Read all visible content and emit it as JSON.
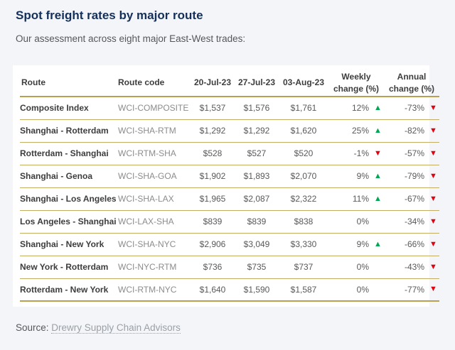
{
  "page": {
    "title": "Spot freight rates by major route",
    "subtitle": "Our assessment across eight major East-West trades:",
    "source_label": "Source:",
    "source_link": "Drewry Supply Chain Advisors"
  },
  "table": {
    "columns": [
      "Route",
      "Route code",
      "20-Jul-23",
      "27-Jul-23",
      "03-Aug-23",
      "Weekly change (%)",
      "Annual change (%)"
    ],
    "rows": [
      {
        "route": "Composite Index",
        "code": "WCI-COMPOSITE",
        "d1": "$1,537",
        "d2": "$1,576",
        "d3": "$1,761",
        "weekly": "12%",
        "weekly_dir": "up",
        "annual": "-73%",
        "annual_dir": "down"
      },
      {
        "route": "Shanghai - Rotterdam",
        "code": "WCI-SHA-RTM",
        "d1": "$1,292",
        "d2": "$1,292",
        "d3": "$1,620",
        "weekly": "25%",
        "weekly_dir": "up",
        "annual": "-82%",
        "annual_dir": "down"
      },
      {
        "route": "Rotterdam - Shanghai",
        "code": "WCI-RTM-SHA",
        "d1": "$528",
        "d2": "$527",
        "d3": "$520",
        "weekly": "-1%",
        "weekly_dir": "down",
        "annual": "-57%",
        "annual_dir": "down"
      },
      {
        "route": "Shanghai - Genoa",
        "code": "WCI-SHA-GOA",
        "d1": "$1,902",
        "d2": "$1,893",
        "d3": "$2,070",
        "weekly": "9%",
        "weekly_dir": "up",
        "annual": "-79%",
        "annual_dir": "down"
      },
      {
        "route": "Shanghai - Los Angeles",
        "code": "WCI-SHA-LAX",
        "d1": "$1,965",
        "d2": "$2,087",
        "d3": "$2,322",
        "weekly": "11%",
        "weekly_dir": "up",
        "annual": "-67%",
        "annual_dir": "down"
      },
      {
        "route": "Los Angeles - Shanghai",
        "code": "WCI-LAX-SHA",
        "d1": "$839",
        "d2": "$839",
        "d3": "$838",
        "weekly": "0%",
        "weekly_dir": "none",
        "annual": "-34%",
        "annual_dir": "down"
      },
      {
        "route": "Shanghai - New York",
        "code": "WCI-SHA-NYC",
        "d1": "$2,906",
        "d2": "$3,049",
        "d3": "$3,330",
        "weekly": "9%",
        "weekly_dir": "up",
        "annual": "-66%",
        "annual_dir": "down"
      },
      {
        "route": "New York - Rotterdam",
        "code": "WCI-NYC-RTM",
        "d1": "$736",
        "d2": "$735",
        "d3": "$737",
        "weekly": "0%",
        "weekly_dir": "none",
        "annual": "-43%",
        "annual_dir": "down"
      },
      {
        "route": "Rotterdam - New York",
        "code": "WCI-RTM-NYC",
        "d1": "$1,640",
        "d2": "$1,590",
        "d3": "$1,587",
        "weekly": "0%",
        "weekly_dir": "none",
        "annual": "-77%",
        "annual_dir": "down"
      }
    ]
  },
  "icons": {
    "up": "▲",
    "down": "▼"
  },
  "colors": {
    "accent_title": "#14305a",
    "gold_rule": "#b9a050",
    "up_green": "#00a651",
    "down_red": "#e3000f",
    "page_background": "#f4f5f8",
    "card_background": "#ffffff"
  }
}
